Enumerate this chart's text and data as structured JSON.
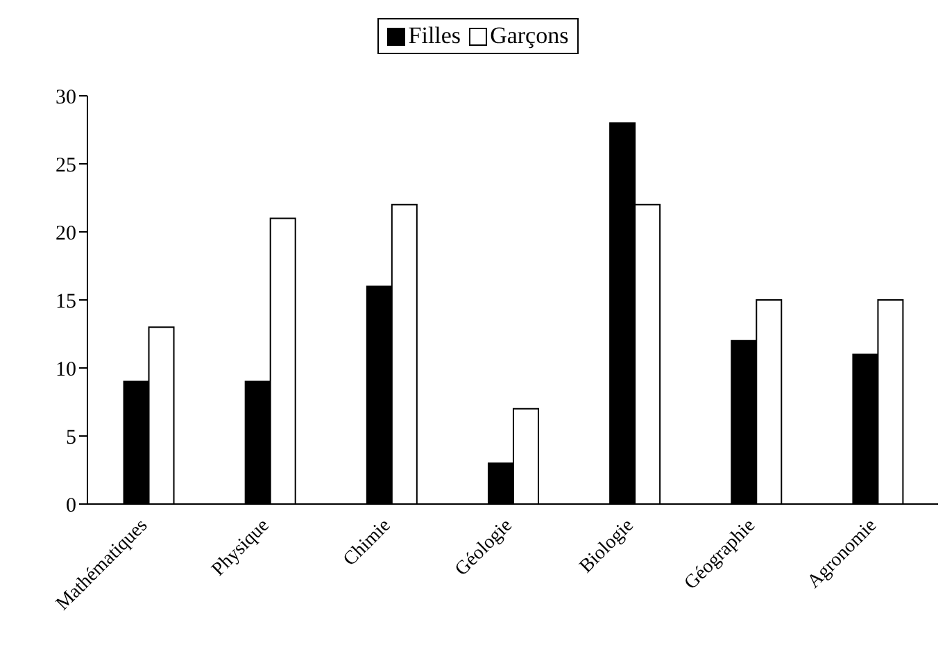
{
  "chart_data": {
    "type": "bar",
    "categories": [
      "Mathématiques",
      "Physique",
      "Chimie",
      "Géologie",
      "Biologie",
      "Géographie",
      "Agronomie"
    ],
    "series": [
      {
        "name": "Filles",
        "color": "#000000",
        "values": [
          9,
          9,
          16,
          3,
          28,
          12,
          11
        ]
      },
      {
        "name": "Garçons",
        "color": "#ffffff",
        "values": [
          13,
          21,
          22,
          7,
          22,
          15,
          15
        ]
      }
    ],
    "ylim": [
      0,
      30
    ],
    "yticks": [
      0,
      5,
      10,
      15,
      20,
      25,
      30
    ],
    "grid": false,
    "legend": "top"
  }
}
